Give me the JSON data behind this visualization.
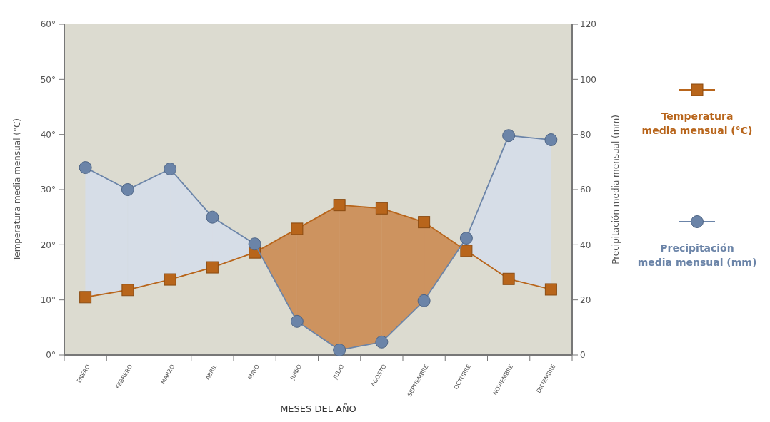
{
  "chart_data": {
    "type": "line",
    "xlabel": "MESES DEL AÑO",
    "ylabel": "Temperatura media mensual (°C)",
    "y2label": "Precipitación media mensual (mm)",
    "categories": [
      "ENERO",
      "FEBRERO",
      "MARZO",
      "ABRIL",
      "MAYO",
      "JUNIO",
      "JULIO",
      "AGOSTO",
      "SEPTIEMBRE",
      "OCTUBRE",
      "NOVIEMBRE",
      "DICIEMBRE"
    ],
    "series": [
      {
        "name": "Temperatura media mensual (°C)",
        "color": "#b8651b",
        "marker": "square",
        "values": [
          10.5,
          11.8,
          13.7,
          15.9,
          18.6,
          22.9,
          27.2,
          26.6,
          24.1,
          18.9,
          13.8,
          11.9
        ]
      },
      {
        "name": "Precipitación media mensual (mm)",
        "color": "#6b84a8",
        "marker": "circle",
        "axis": "y2",
        "values": [
          68,
          60,
          67.5,
          50,
          40.3,
          12.2,
          1.8,
          4.7,
          19.7,
          42.4,
          79.6,
          78.1
        ]
      }
    ],
    "ylim": [
      0,
      60
    ],
    "yticks": [
      {
        "value": 0,
        "label": "0°"
      },
      {
        "value": 10,
        "label": "10°"
      },
      {
        "value": 20,
        "label": "20°"
      },
      {
        "value": 30,
        "label": "30°"
      },
      {
        "value": 40,
        "label": "40°"
      },
      {
        "value": 50,
        "label": "50°"
      },
      {
        "value": 60,
        "label": "60°"
      }
    ],
    "y2lim": [
      0,
      120
    ],
    "y2ticks": [
      0,
      20,
      40,
      60,
      80,
      100,
      120
    ],
    "legend": "right",
    "grid": false
  }
}
